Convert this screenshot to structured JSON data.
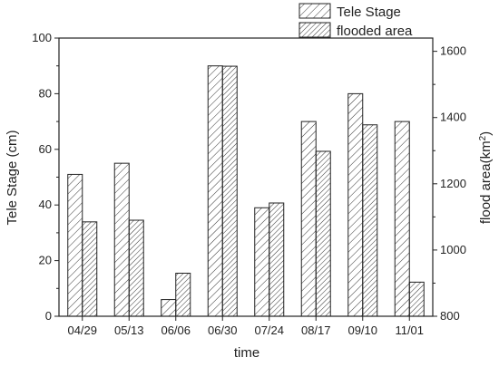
{
  "chart_data": {
    "type": "bar",
    "categories": [
      "04/29",
      "05/13",
      "06/06",
      "06/30",
      "07/24",
      "08/17",
      "09/10",
      "11/01"
    ],
    "xlabel": "time",
    "y_left": {
      "label": "Tele Stage (cm)",
      "lim": [
        0,
        100
      ],
      "ticks": [
        0,
        20,
        40,
        60,
        80,
        100
      ]
    },
    "y_right": {
      "label_main": "flood area(km",
      "label_sup": "2",
      "label_close": ")",
      "lim": [
        800,
        1640
      ],
      "ticks": [
        800,
        1000,
        1200,
        1400,
        1600
      ]
    },
    "series": [
      {
        "name": "Tele Stage",
        "axis": "left",
        "values": [
          51,
          55,
          6,
          90,
          39,
          70,
          80,
          70
        ]
      },
      {
        "name": "flooded area",
        "axis": "right",
        "values": [
          1085,
          1090,
          930,
          1555,
          1142,
          1298,
          1378,
          903
        ]
      }
    ],
    "legend_position": "top-right-outside",
    "grid": false
  }
}
